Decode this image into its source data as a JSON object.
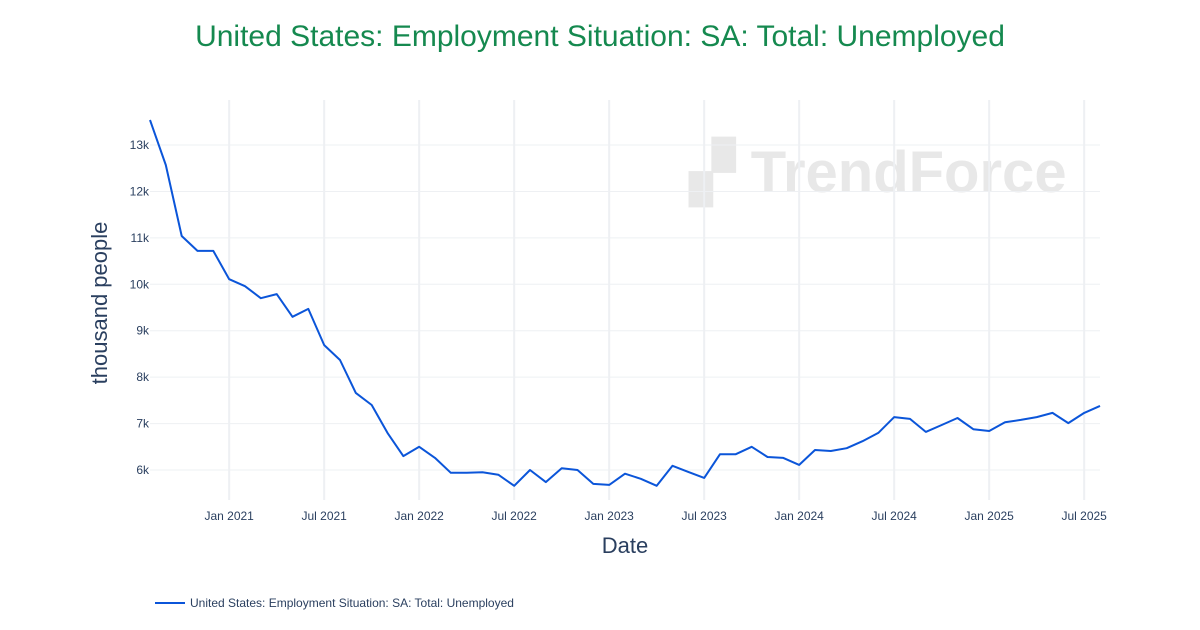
{
  "chart_data": {
    "type": "line",
    "title": "United States: Employment Situation: SA: Total: Unemployed",
    "xlabel": "Date",
    "ylabel": "thousand people",
    "x_tick_labels": [
      "Jan 2021",
      "Jul 2021",
      "Jan 2022",
      "Jul 2022",
      "Jan 2023",
      "Jul 2023",
      "Jan 2024",
      "Jul 2024",
      "Jan 2025",
      "Jul 2025"
    ],
    "y_tick_labels": [
      "6k",
      "7k",
      "8k",
      "9k",
      "10k",
      "11k",
      "12k",
      "13k"
    ],
    "y_ticks": [
      6000,
      7000,
      8000,
      9000,
      10000,
      11000,
      12000,
      13000
    ],
    "ylim": [
      5354,
      13970
    ],
    "xlim": [
      "2020-08",
      "2025-08"
    ],
    "grid": true,
    "legend_position": "bottom-left",
    "watermark": "TrendForce",
    "series": [
      {
        "name": "United States: Employment Situation: SA: Total: Unemployed",
        "color": "#0b55d9",
        "x": [
          "2020-08",
          "2020-09",
          "2020-10",
          "2020-11",
          "2020-12",
          "2021-01",
          "2021-02",
          "2021-03",
          "2021-04",
          "2021-05",
          "2021-06",
          "2021-07",
          "2021-08",
          "2021-09",
          "2021-10",
          "2021-11",
          "2021-12",
          "2022-01",
          "2022-02",
          "2022-03",
          "2022-04",
          "2022-05",
          "2022-06",
          "2022-07",
          "2022-08",
          "2022-09",
          "2022-10",
          "2022-11",
          "2022-12",
          "2023-01",
          "2023-02",
          "2023-03",
          "2023-04",
          "2023-05",
          "2023-06",
          "2023-07",
          "2023-08",
          "2023-09",
          "2023-10",
          "2023-11",
          "2023-12",
          "2024-01",
          "2024-02",
          "2024-03",
          "2024-04",
          "2024-05",
          "2024-06",
          "2024-07",
          "2024-08",
          "2024-09",
          "2024-10",
          "2024-11",
          "2024-12",
          "2025-01",
          "2025-02",
          "2025-03",
          "2025-04",
          "2025-05",
          "2025-06",
          "2025-07",
          "2025-08"
        ],
        "values": [
          13540,
          12570,
          11040,
          10720,
          10720,
          10110,
          9960,
          9700,
          9790,
          9300,
          9470,
          8690,
          8370,
          7660,
          7400,
          6800,
          6300,
          6500,
          6260,
          5940,
          5940,
          5950,
          5900,
          5660,
          6000,
          5740,
          6040,
          6000,
          5700,
          5680,
          5920,
          5810,
          5660,
          6090,
          5960,
          5830,
          6340,
          6340,
          6500,
          6280,
          6260,
          6110,
          6430,
          6410,
          6470,
          6620,
          6800,
          7140,
          7100,
          6820,
          6970,
          7120,
          6880,
          6840,
          7030,
          7080,
          7140,
          7230,
          7010,
          7230,
          7380
        ]
      }
    ]
  }
}
